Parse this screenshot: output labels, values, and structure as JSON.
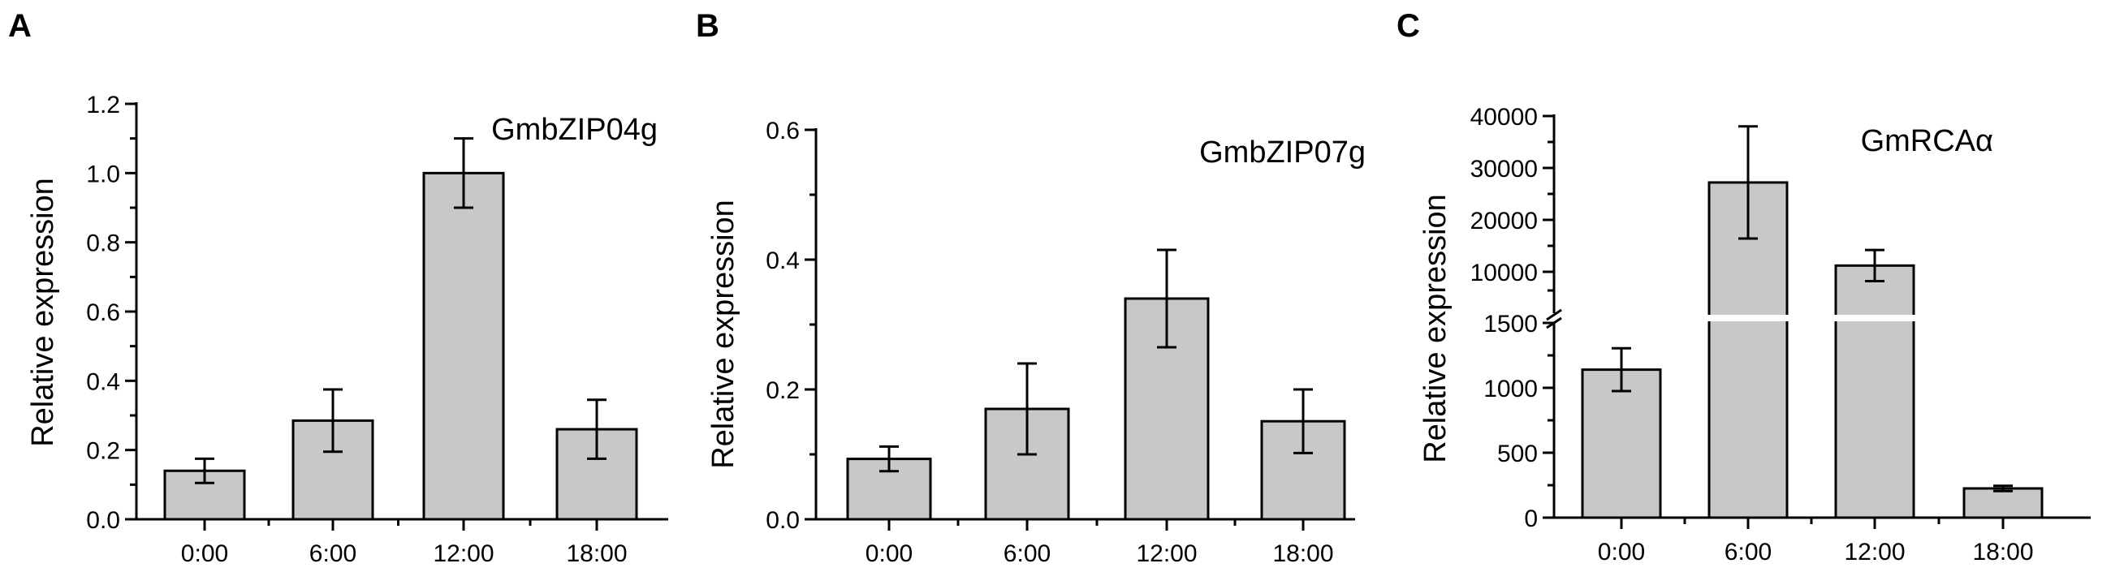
{
  "chart_data": [
    {
      "panel_label": "A",
      "type": "bar",
      "title": "GmbZIP04g",
      "ylabel": "Relative expression",
      "xlabel": "",
      "categories": [
        "0:00",
        "6:00",
        "12:00",
        "18:00"
      ],
      "values": [
        0.14,
        0.285,
        1.0,
        0.26
      ],
      "errors": [
        0.035,
        0.09,
        0.1,
        0.085
      ],
      "ylim": [
        0,
        1.2
      ],
      "yticks": [
        "0.0",
        "0.2",
        "0.4",
        "0.6",
        "0.8",
        "1.0",
        "1.2"
      ],
      "ytick_values": [
        0,
        0.2,
        0.4,
        0.6,
        0.8,
        1.0,
        1.2
      ],
      "bar_color": "#c8c8c8",
      "grid": false
    },
    {
      "panel_label": "B",
      "type": "bar",
      "title": "GmbZIP07g",
      "ylabel": "Relative expression",
      "xlabel": "",
      "categories": [
        "0:00",
        "6:00",
        "12:00",
        "18:00"
      ],
      "values": [
        0.093,
        0.17,
        0.34,
        0.151
      ],
      "errors": [
        0.019,
        0.07,
        0.075,
        0.049
      ],
      "ylim": [
        0,
        0.6
      ],
      "yticks": [
        "0.0",
        "0.2",
        "0.4",
        "0.6"
      ],
      "ytick_values": [
        0,
        0.2,
        0.4,
        0.6
      ],
      "bar_color": "#c8c8c8",
      "grid": false
    },
    {
      "panel_label": "C",
      "type": "bar",
      "title": "GmRCAα",
      "ylabel": "Relative expression",
      "xlabel": "",
      "categories": [
        "0:00",
        "6:00",
        "12:00",
        "18:00"
      ],
      "values": [
        1140,
        27200,
        11200,
        225
      ],
      "errors": [
        165,
        10800,
        3000,
        20
      ],
      "axis_break": true,
      "ylim_lower": [
        0,
        2000
      ],
      "ylim_upper": [
        5000,
        40000
      ],
      "yticks_lower": [
        "0",
        "500",
        "1000",
        "1500"
      ],
      "ytick_values_lower": [
        0,
        500,
        1000,
        1500
      ],
      "yticks_upper": [
        "10000",
        "20000",
        "30000",
        "40000"
      ],
      "ytick_values_upper": [
        10000,
        20000,
        30000,
        40000
      ],
      "bar_color": "#c8c8c8",
      "grid": false
    }
  ]
}
